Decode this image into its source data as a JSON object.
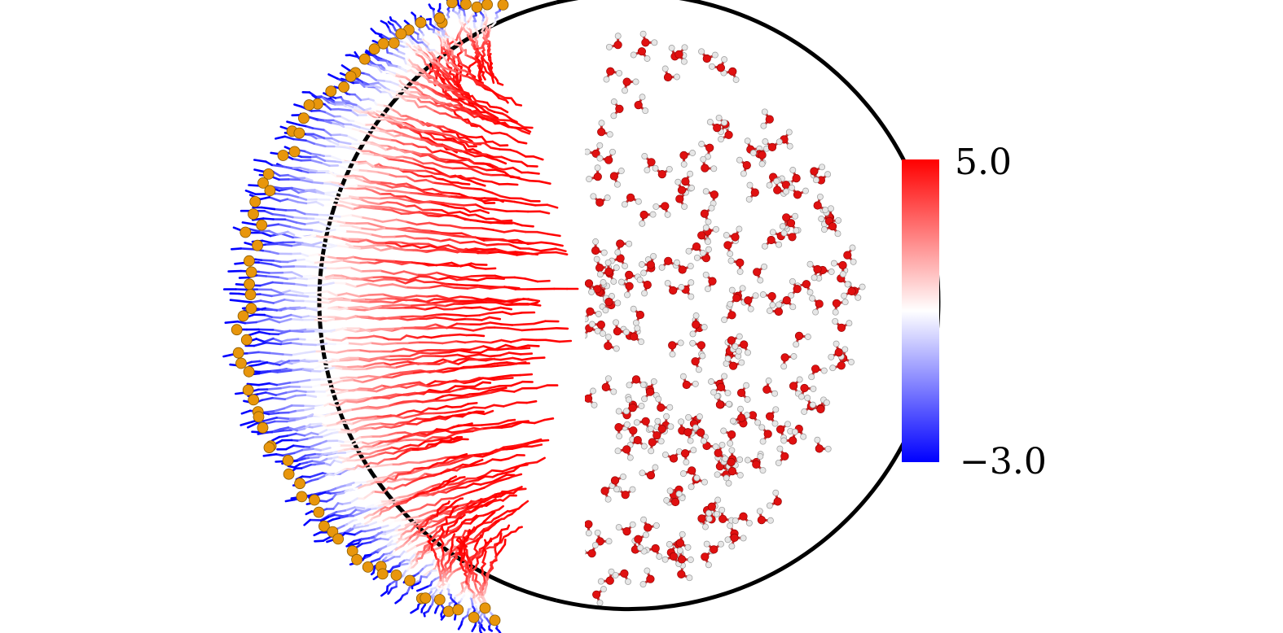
{
  "colorbar": {
    "max_label": "5.0",
    "min_label": "−3.0",
    "max_value": 5.0,
    "min_value": -3.0,
    "high_color": "#ff0000",
    "mid_color": "#ffffff",
    "low_color": "#0000ff"
  },
  "colors": {
    "boundary": "#000000",
    "endpoint": "#e8960c",
    "oxygen": "#e01010",
    "hydrogen": "#e6e6e6",
    "background": "#ffffff"
  }
}
